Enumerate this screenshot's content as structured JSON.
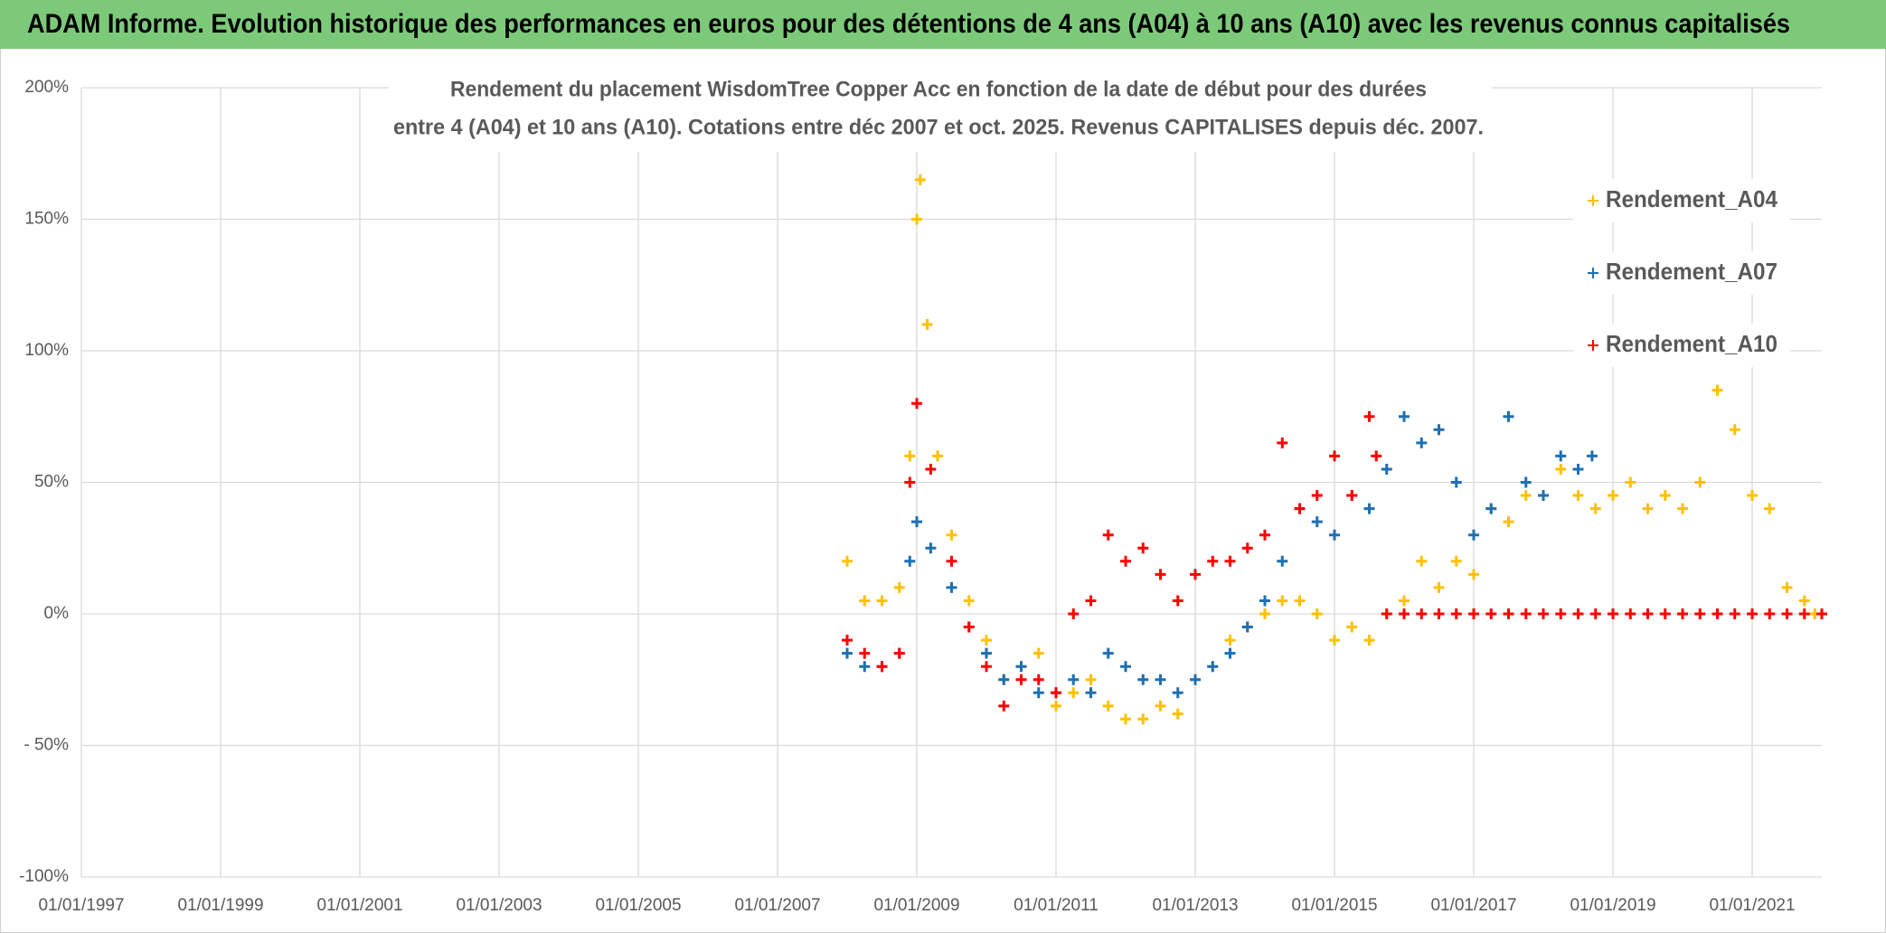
{
  "header": {
    "title": "ADAM Informe. Evolution historique des performances en euros pour des détentions de 4 ans (A04) à 10 ans (A10) avec les revenus connus capitalisés"
  },
  "chart_data": {
    "type": "scatter",
    "title": [
      "Rendement du placement WisdomTree Copper Acc en fonction de la date de début pour des durées",
      "entre 4 (A04) et 10 ans (A10). Cotations entre déc 2007 et oct. 2025. Revenus CAPITALISES depuis déc. 2007."
    ],
    "xlim": [
      1997,
      2022
    ],
    "xticks": [
      {
        "value": 1997,
        "label": "01/01/1997"
      },
      {
        "value": 1999,
        "label": "01/01/1999"
      },
      {
        "value": 2001,
        "label": "01/01/2001"
      },
      {
        "value": 2003,
        "label": "01/01/2003"
      },
      {
        "value": 2005,
        "label": "01/01/2005"
      },
      {
        "value": 2007,
        "label": "01/01/2007"
      },
      {
        "value": 2009,
        "label": "01/01/2009"
      },
      {
        "value": 2011,
        "label": "01/01/2011"
      },
      {
        "value": 2013,
        "label": "01/01/2013"
      },
      {
        "value": 2015,
        "label": "01/01/2015"
      },
      {
        "value": 2017,
        "label": "01/01/2017"
      },
      {
        "value": 2019,
        "label": "01/01/2019"
      },
      {
        "value": 2021,
        "label": "01/01/2021"
      }
    ],
    "ylim": [
      -100,
      200
    ],
    "yticks": [
      {
        "value": -100,
        "label": "-100%"
      },
      {
        "value": -50,
        "label": "- 50%"
      },
      {
        "value": 0,
        "label": "0%"
      },
      {
        "value": 50,
        "label": "50%"
      },
      {
        "value": 100,
        "label": "100%"
      },
      {
        "value": 150,
        "label": "150%"
      },
      {
        "value": 200,
        "label": "200%"
      }
    ],
    "grid": true,
    "legend": "right",
    "series": [
      {
        "name": "Rendement_A04",
        "color": "#ffc000",
        "x": [
          2008.0,
          2008.25,
          2008.5,
          2008.75,
          2008.9,
          2009.0,
          2009.05,
          2009.15,
          2009.3,
          2009.5,
          2009.75,
          2010.0,
          2010.25,
          2010.5,
          2010.75,
          2011.0,
          2011.25,
          2011.5,
          2011.75,
          2012.0,
          2012.25,
          2012.5,
          2012.75,
          2013.0,
          2013.25,
          2013.5,
          2013.75,
          2014.0,
          2014.25,
          2014.5,
          2014.75,
          2015.0,
          2015.25,
          2015.5,
          2015.75,
          2016.0,
          2016.25,
          2016.5,
          2016.75,
          2017.0,
          2017.25,
          2017.5,
          2017.75,
          2018.0,
          2018.25,
          2018.5,
          2018.75,
          2019.0,
          2019.25,
          2019.5,
          2019.75,
          2020.0,
          2020.25,
          2020.5,
          2020.75,
          2021.0,
          2021.25,
          2021.5,
          2021.75,
          2021.9
        ],
        "values": [
          20,
          5,
          5,
          10,
          60,
          150,
          165,
          110,
          60,
          30,
          5,
          -10,
          -25,
          -20,
          -15,
          -35,
          -30,
          -25,
          -35,
          -40,
          -40,
          -35,
          -38,
          -25,
          -20,
          -10,
          -5,
          0,
          5,
          5,
          0,
          -10,
          -5,
          -10,
          0,
          5,
          20,
          10,
          20,
          15,
          40,
          35,
          45,
          45,
          55,
          45,
          40,
          45,
          50,
          40,
          45,
          40,
          50,
          85,
          70,
          45,
          40,
          10,
          5,
          0
        ]
      },
      {
        "name": "Rendement_A07",
        "color": "#1f6fb4",
        "x": [
          2008.0,
          2008.25,
          2008.5,
          2008.75,
          2008.9,
          2009.0,
          2009.2,
          2009.5,
          2009.75,
          2010.0,
          2010.25,
          2010.5,
          2010.75,
          2011.0,
          2011.25,
          2011.5,
          2011.75,
          2012.0,
          2012.25,
          2012.5,
          2012.75,
          2013.0,
          2013.25,
          2013.5,
          2013.75,
          2014.0,
          2014.25,
          2014.5,
          2014.75,
          2015.0,
          2015.25,
          2015.5,
          2015.75,
          2016.0,
          2016.25,
          2016.5,
          2016.75,
          2017.0,
          2017.25,
          2017.5,
          2017.75,
          2018.0,
          2018.25,
          2018.5,
          2018.7
        ],
        "values": [
          -15,
          -20,
          -20,
          -15,
          20,
          35,
          25,
          10,
          -5,
          -15,
          -25,
          -20,
          -30,
          -30,
          -25,
          -30,
          -15,
          -20,
          -25,
          -25,
          -30,
          -25,
          -20,
          -15,
          -5,
          5,
          20,
          40,
          35,
          30,
          45,
          40,
          55,
          75,
          65,
          70,
          50,
          30,
          40,
          75,
          50,
          45,
          60,
          55,
          60
        ]
      },
      {
        "name": "Rendement_A10",
        "color": "#ff0000",
        "x": [
          2008.0,
          2008.25,
          2008.5,
          2008.75,
          2008.9,
          2009.0,
          2009.2,
          2009.5,
          2009.75,
          2010.0,
          2010.25,
          2010.5,
          2010.75,
          2011.0,
          2011.25,
          2011.5,
          2011.75,
          2012.0,
          2012.25,
          2012.5,
          2012.75,
          2013.0,
          2013.25,
          2013.5,
          2013.75,
          2014.0,
          2014.25,
          2014.5,
          2014.75,
          2015.0,
          2015.25,
          2015.5,
          2015.6,
          2015.75,
          2016.0,
          2016.25,
          2016.5,
          2016.75,
          2017.0,
          2017.25,
          2017.5,
          2017.75,
          2018.0,
          2018.25,
          2018.5,
          2018.75,
          2019.0,
          2019.25,
          2019.5,
          2019.75,
          2020.0,
          2020.25,
          2020.5,
          2020.75,
          2021.0,
          2021.25,
          2021.5,
          2021.75,
          2022.0
        ],
        "values": [
          -10,
          -15,
          -20,
          -15,
          50,
          80,
          55,
          20,
          -5,
          -20,
          -35,
          -25,
          -25,
          -30,
          0,
          5,
          30,
          20,
          25,
          15,
          5,
          15,
          20,
          20,
          25,
          30,
          65,
          40,
          45,
          60,
          45,
          75,
          60,
          0,
          0,
          0,
          0,
          0,
          0,
          0,
          0,
          0,
          0,
          0,
          0,
          0,
          0,
          0,
          0,
          0,
          0,
          0,
          0,
          0,
          0,
          0,
          0,
          0,
          0
        ]
      }
    ]
  }
}
